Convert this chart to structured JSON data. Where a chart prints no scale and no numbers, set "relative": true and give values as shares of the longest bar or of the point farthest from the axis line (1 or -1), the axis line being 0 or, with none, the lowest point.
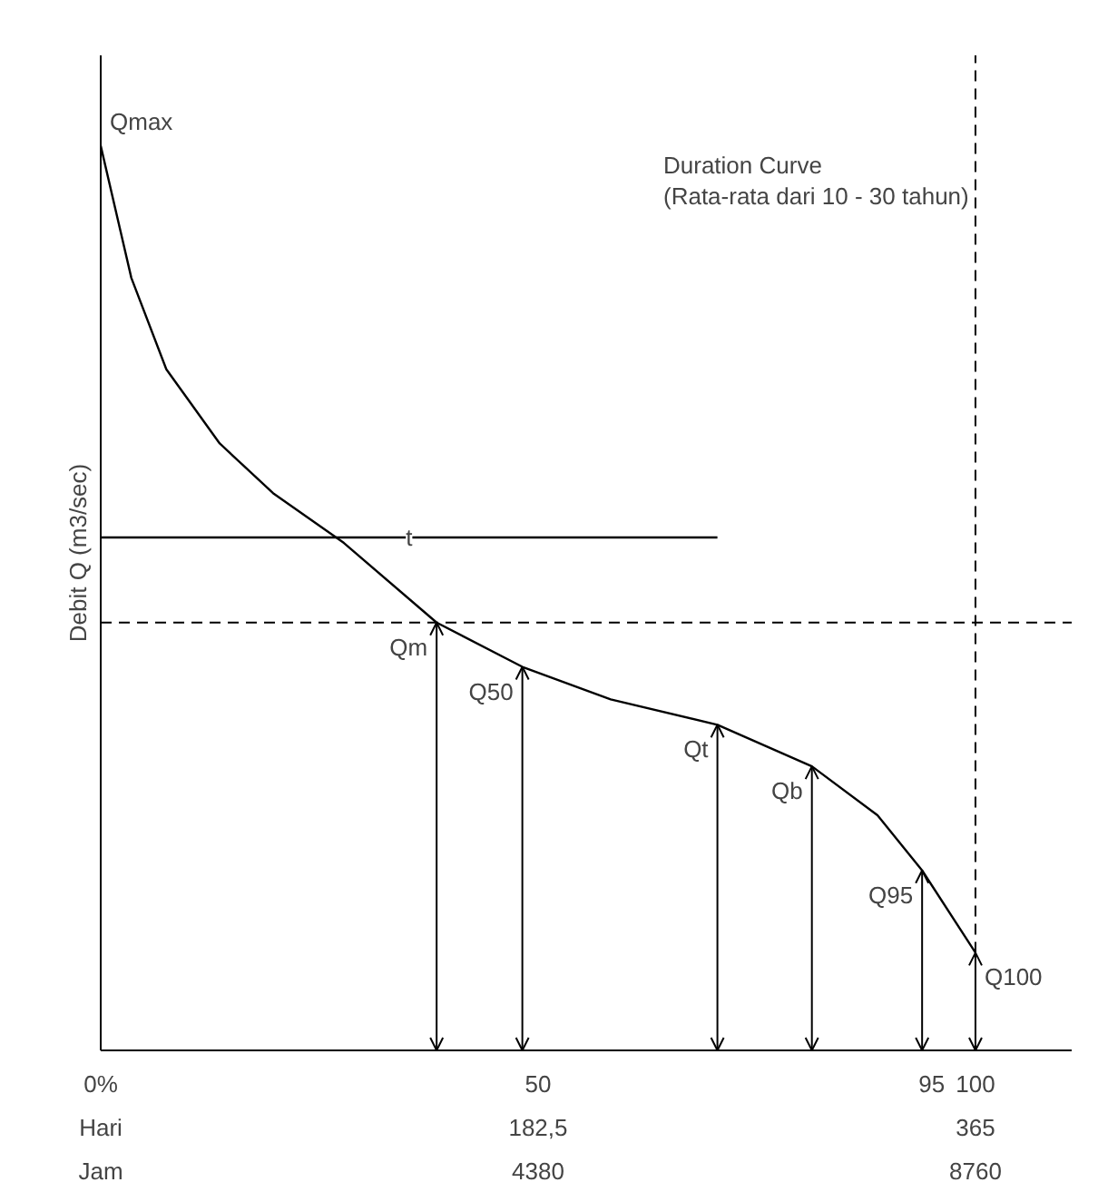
{
  "chart_data": {
    "type": "line",
    "relative": true,
    "xlabel": null,
    "ylabel": "Debit Q (m3/sec)",
    "x": [
      0,
      3.5,
      7.5,
      13.6,
      19.7,
      27.8,
      38.4,
      48.2,
      58.3,
      70.5,
      81.3,
      88.8,
      93.9,
      100
    ],
    "series": [
      {
        "color": "#000000",
        "values": [
          1.0,
          0.854,
          0.753,
          0.671,
          0.616,
          0.561,
          0.473,
          0.424,
          0.388,
          0.36,
          0.314,
          0.26,
          0.199,
          0.108
        ]
      },
      {
        "color": "#000000",
        "x": [
          0,
          70.5
        ],
        "values": [
          0.567,
          0.567
        ]
      }
    ],
    "xlim": [
      0,
      111
    ],
    "xticks": [
      {
        "value": 0,
        "label": "0%\nHari\nJam"
      },
      {
        "value": 50,
        "label": "50\n182,5\n4380"
      },
      {
        "value": 95,
        "label": "95"
      },
      {
        "value": 100,
        "label": "100\n365\n8760"
      }
    ],
    "tick_labels": "x",
    "marker": "none",
    "line_style": "solid",
    "ref_lines": [
      {
        "axis": "y",
        "value": 0.473,
        "line_style": "dashed"
      },
      {
        "axis": "x",
        "value": 100,
        "line_style": "dashed"
      }
    ],
    "annotations": [
      "Duration Curve",
      "(Rata-rata dari 10 - 30 tahun)",
      {
        "text": "Qmax",
        "x": 0,
        "y": 1.0
      },
      {
        "text": "t",
        "x": 35.25,
        "y": 0.567
      },
      {
        "text": "Qm",
        "x": 38.4,
        "y": 0.473
      },
      {
        "text": "Q50",
        "x": 48.2,
        "y": 0.424
      },
      {
        "text": "Qt",
        "x": 70.5,
        "y": 0.36
      },
      {
        "text": "Qb",
        "x": 81.3,
        "y": 0.314
      },
      {
        "text": "Q95",
        "x": 93.9,
        "y": 0.199
      },
      {
        "text": "Q100",
        "x": 100,
        "y": 0.108
      }
    ]
  }
}
